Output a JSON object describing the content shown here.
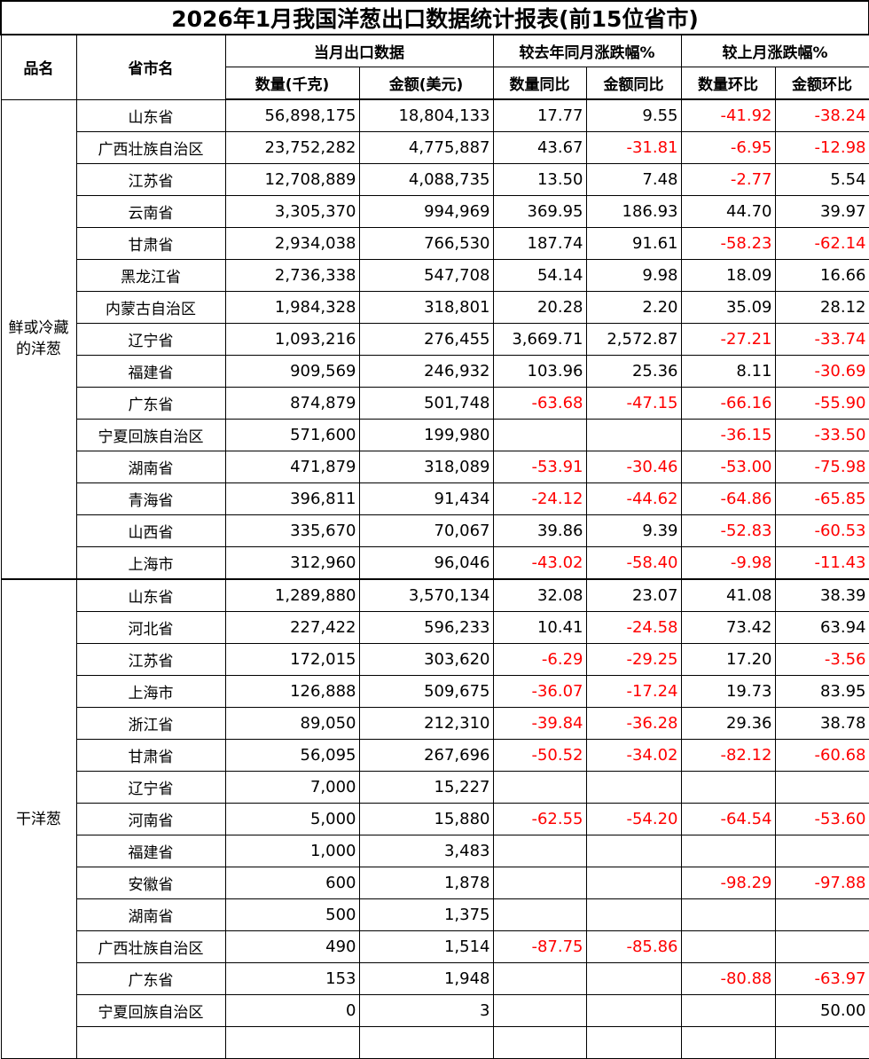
{
  "title": "2026年1月我国洋葱出口数据统计报表(前15位省市)",
  "headers": {
    "product": "品名",
    "province": "省市名",
    "current": "当月出口数据",
    "yoy": "较去年同月涨跌幅%",
    "mom": "较上月涨跌幅%",
    "qty": "数量(千克)",
    "amount": "金额(美元)",
    "qty_yoy": "数量同比",
    "amt_yoy": "金额同比",
    "qty_mom": "数量环比",
    "amt_mom": "金额环比"
  },
  "colors": {
    "negative": "#ff0000",
    "positive": "#000000"
  },
  "groups": [
    {
      "name": "鲜或冷藏的洋葱",
      "rows": [
        [
          "山东省",
          "56,898,175",
          "18,804,133",
          "17.77",
          "9.55",
          "-41.92",
          "-38.24"
        ],
        [
          "广西壮族自治区",
          "23,752,282",
          "4,775,887",
          "43.67",
          "-31.81",
          "-6.95",
          "-12.98"
        ],
        [
          "江苏省",
          "12,708,889",
          "4,088,735",
          "13.50",
          "7.48",
          "-2.77",
          "5.54"
        ],
        [
          "云南省",
          "3,305,370",
          "994,969",
          "369.95",
          "186.93",
          "44.70",
          "39.97"
        ],
        [
          "甘肃省",
          "2,934,038",
          "766,530",
          "187.74",
          "91.61",
          "-58.23",
          "-62.14"
        ],
        [
          "黑龙江省",
          "2,736,338",
          "547,708",
          "54.14",
          "9.98",
          "18.09",
          "16.66"
        ],
        [
          "内蒙古自治区",
          "1,984,328",
          "318,801",
          "20.28",
          "2.20",
          "35.09",
          "28.12"
        ],
        [
          "辽宁省",
          "1,093,216",
          "276,455",
          "3,669.71",
          "2,572.87",
          "-27.21",
          "-33.74"
        ],
        [
          "福建省",
          "909,569",
          "246,932",
          "103.96",
          "25.36",
          "8.11",
          "-30.69"
        ],
        [
          "广东省",
          "874,879",
          "501,748",
          "-63.68",
          "-47.15",
          "-66.16",
          "-55.90"
        ],
        [
          "宁夏回族自治区",
          "571,600",
          "199,980",
          "",
          "",
          "-36.15",
          "-33.50"
        ],
        [
          "湖南省",
          "471,879",
          "318,089",
          "-53.91",
          "-30.46",
          "-53.00",
          "-75.98"
        ],
        [
          "青海省",
          "396,811",
          "91,434",
          "-24.12",
          "-44.62",
          "-64.86",
          "-65.85"
        ],
        [
          "山西省",
          "335,670",
          "70,067",
          "39.86",
          "9.39",
          "-52.83",
          "-60.53"
        ],
        [
          "上海市",
          "312,960",
          "96,046",
          "-43.02",
          "-58.40",
          "-9.98",
          "-11.43"
        ]
      ]
    },
    {
      "name": "干洋葱",
      "rows": [
        [
          "山东省",
          "1,289,880",
          "3,570,134",
          "32.08",
          "23.07",
          "41.08",
          "38.39"
        ],
        [
          "河北省",
          "227,422",
          "596,233",
          "10.41",
          "-24.58",
          "73.42",
          "63.94"
        ],
        [
          "江苏省",
          "172,015",
          "303,620",
          "-6.29",
          "-29.25",
          "17.20",
          "-3.56"
        ],
        [
          "上海市",
          "126,888",
          "509,675",
          "-36.07",
          "-17.24",
          "19.73",
          "83.95"
        ],
        [
          "浙江省",
          "89,050",
          "212,310",
          "-39.84",
          "-36.28",
          "29.36",
          "38.78"
        ],
        [
          "甘肃省",
          "56,095",
          "267,696",
          "-50.52",
          "-34.02",
          "-82.12",
          "-60.68"
        ],
        [
          "辽宁省",
          "7,000",
          "15,227",
          "",
          "",
          "",
          ""
        ],
        [
          "河南省",
          "5,000",
          "15,880",
          "-62.55",
          "-54.20",
          "-64.54",
          "-53.60"
        ],
        [
          "福建省",
          "1,000",
          "3,483",
          "",
          "",
          "",
          ""
        ],
        [
          "安徽省",
          "600",
          "1,878",
          "",
          "",
          "-98.29",
          "-97.88"
        ],
        [
          "湖南省",
          "500",
          "1,375",
          "",
          "",
          "",
          ""
        ],
        [
          "广西壮族自治区",
          "490",
          "1,514",
          "-87.75",
          "-85.86",
          "",
          ""
        ],
        [
          "广东省",
          "153",
          "1,948",
          "",
          "",
          "-80.88",
          "-63.97"
        ],
        [
          "宁夏回族自治区",
          "0",
          "3",
          "",
          "",
          "",
          "50.00"
        ],
        [
          "",
          "",
          "",
          "",
          "",
          "",
          ""
        ]
      ]
    }
  ]
}
